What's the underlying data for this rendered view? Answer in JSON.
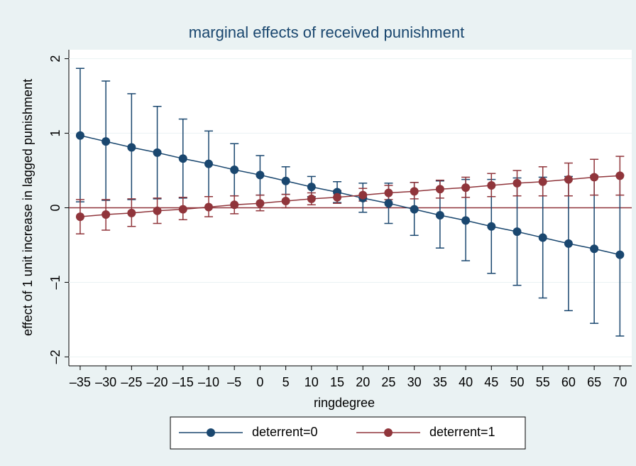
{
  "chart_data": {
    "type": "line",
    "title": "marginal effects of received punishment",
    "x_label": "ringdegree",
    "y_label": "effect of 1 unit increase in lagged punishment",
    "x": [
      -35,
      -30,
      -25,
      -20,
      -15,
      -10,
      -5,
      0,
      5,
      10,
      15,
      20,
      25,
      30,
      35,
      40,
      45,
      50,
      55,
      60,
      65,
      70
    ],
    "series": [
      {
        "name": "deterrent=0",
        "color": "#1a476f",
        "values": [
          0.97,
          0.89,
          0.81,
          0.74,
          0.66,
          0.59,
          0.51,
          0.44,
          0.36,
          0.28,
          0.21,
          0.13,
          0.06,
          -0.02,
          -0.1,
          -0.17,
          -0.25,
          -0.32,
          -0.4,
          -0.48,
          -0.55,
          -0.63
        ],
        "ci_upper": [
          1.87,
          1.7,
          1.53,
          1.36,
          1.19,
          1.03,
          0.86,
          0.7,
          0.55,
          0.42,
          0.35,
          0.33,
          0.33,
          0.34,
          0.36,
          0.38,
          0.38,
          0.4,
          0.41,
          0.42,
          0.43,
          0.44
        ],
        "ci_lower": [
          0.08,
          0.1,
          0.11,
          0.12,
          0.13,
          0.15,
          0.16,
          0.17,
          0.18,
          0.15,
          0.07,
          -0.06,
          -0.21,
          -0.37,
          -0.54,
          -0.71,
          -0.88,
          -1.04,
          -1.21,
          -1.38,
          -1.55,
          -1.72
        ]
      },
      {
        "name": "deterrent=1",
        "color": "#90353b",
        "values": [
          -0.12,
          -0.09,
          -0.07,
          -0.04,
          -0.02,
          0.01,
          0.04,
          0.06,
          0.09,
          0.12,
          0.14,
          0.17,
          0.2,
          0.22,
          0.25,
          0.27,
          0.3,
          0.33,
          0.35,
          0.38,
          0.41,
          0.43
        ],
        "ci_upper": [
          0.11,
          0.11,
          0.12,
          0.13,
          0.14,
          0.15,
          0.16,
          0.17,
          0.18,
          0.2,
          0.23,
          0.26,
          0.3,
          0.34,
          0.37,
          0.41,
          0.46,
          0.5,
          0.55,
          0.6,
          0.65,
          0.69
        ],
        "ci_lower": [
          -0.35,
          -0.3,
          -0.25,
          -0.21,
          -0.16,
          -0.12,
          -0.08,
          -0.04,
          0.0,
          0.04,
          0.06,
          0.09,
          0.11,
          0.12,
          0.13,
          0.14,
          0.15,
          0.16,
          0.16,
          0.16,
          0.17,
          0.17
        ]
      }
    ],
    "reference_line": {
      "value": 0,
      "color": "#90353b"
    },
    "xlim": [
      -37.2,
      72.3
    ],
    "ylim": [
      -2.12,
      2.12
    ],
    "xticks": [
      {
        "value": -35,
        "label": "–35"
      },
      {
        "value": -30,
        "label": "–30"
      },
      {
        "value": -25,
        "label": "–25"
      },
      {
        "value": -20,
        "label": "–20"
      },
      {
        "value": -15,
        "label": "–15"
      },
      {
        "value": -10,
        "label": "–10"
      },
      {
        "value": -5,
        "label": "–5"
      },
      0,
      5,
      10,
      15,
      20,
      25,
      30,
      35,
      40,
      45,
      50,
      55,
      60,
      65,
      70
    ],
    "yticks": [
      {
        "value": -2,
        "label": "–2"
      },
      {
        "value": -1,
        "label": "–1"
      },
      0,
      1,
      2
    ],
    "grid": true,
    "legend": "bottom"
  }
}
